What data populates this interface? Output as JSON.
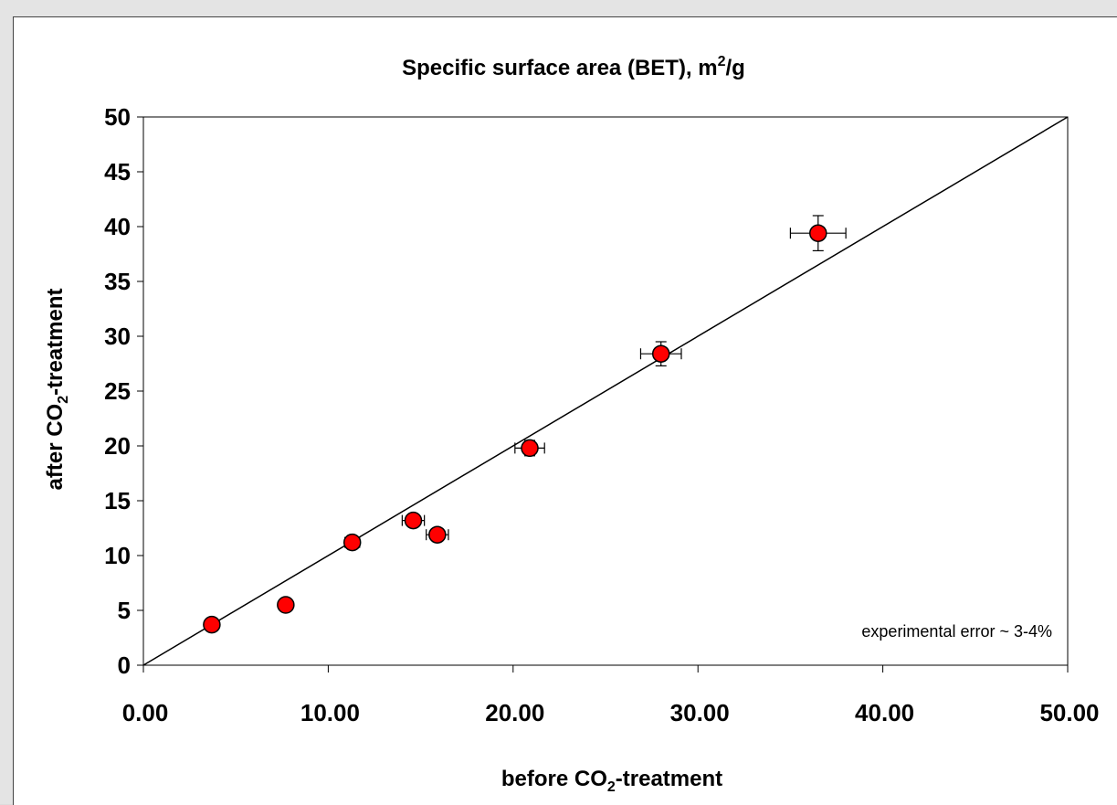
{
  "chart_data": {
    "type": "scatter",
    "title": "Specific surface area (BET), m",
    "title_sup": "2",
    "title_suffix": "/g",
    "xlabel_parts": [
      "before CO",
      "2",
      "-treatment"
    ],
    "ylabel_parts": [
      "after CO",
      "2",
      "-treatment"
    ],
    "xlim": [
      0,
      50
    ],
    "ylim": [
      0,
      50
    ],
    "x_ticks": [
      0,
      10,
      20,
      30,
      40,
      50
    ],
    "x_tick_labels": [
      "0.00",
      "10.00",
      "20.00",
      "30.00",
      "40.00",
      "50.00"
    ],
    "y_ticks": [
      0,
      5,
      10,
      15,
      20,
      25,
      30,
      35,
      40,
      45,
      50
    ],
    "y_tick_labels": [
      "0",
      "5",
      "10",
      "15",
      "20",
      "25",
      "30",
      "35",
      "40",
      "45",
      "50"
    ],
    "grid": false,
    "marker_color": "#ff0000",
    "line_color": "#000000",
    "reference_line": {
      "x": [
        0,
        50
      ],
      "y": [
        0,
        50
      ]
    },
    "points": [
      {
        "x": 3.7,
        "y": 3.7,
        "xerr": 0.0,
        "yerr": 0.0
      },
      {
        "x": 7.7,
        "y": 5.5,
        "xerr": 0.0,
        "yerr": 0.0
      },
      {
        "x": 11.3,
        "y": 11.2,
        "xerr": 0.4,
        "yerr": 0.4
      },
      {
        "x": 14.6,
        "y": 13.2,
        "xerr": 0.6,
        "yerr": 0.5
      },
      {
        "x": 15.9,
        "y": 11.9,
        "xerr": 0.6,
        "yerr": 0.5
      },
      {
        "x": 20.9,
        "y": 19.8,
        "xerr": 0.8,
        "yerr": 0.7
      },
      {
        "x": 28.0,
        "y": 28.4,
        "xerr": 1.1,
        "yerr": 1.1
      },
      {
        "x": 36.5,
        "y": 39.4,
        "xerr": 1.5,
        "yerr": 1.6
      }
    ],
    "annotation": "experimental error ~ 3-4%"
  }
}
